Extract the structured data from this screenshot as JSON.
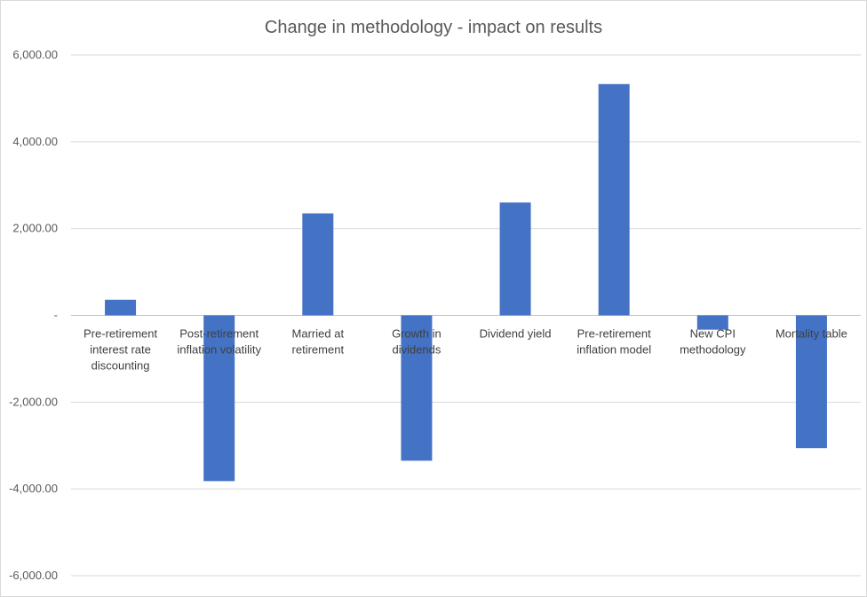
{
  "chart_data": {
    "type": "bar",
    "title": "Change in methodology - impact on results",
    "xlabel": "",
    "ylabel": "",
    "ylim": [
      -6000,
      6000
    ],
    "y_ticks": [
      6000,
      4000,
      2000,
      0,
      -2000,
      -4000,
      -6000
    ],
    "y_tick_labels": [
      "6,000.00",
      "4,000.00",
      "2,000.00",
      "-",
      "-2,000.00",
      "-4,000.00",
      "-6,000.00"
    ],
    "grid": true,
    "legend": "none",
    "categories": [
      "Pre-retirement interest rate discounting",
      "Post-retirement inflation volatility",
      "Married at retirement",
      "Growth in dividends",
      "Dividend yield",
      "Pre-retirement inflation model",
      "New CPI methodology",
      "Mortality table"
    ],
    "category_lines": [
      [
        "Pre-retirement",
        "interest rate",
        "discounting"
      ],
      [
        "Post-retirement",
        "inflation volatility"
      ],
      [
        "Married at",
        "retirement"
      ],
      [
        "Growth in",
        "dividends"
      ],
      [
        "Dividend yield"
      ],
      [
        "Pre-retirement",
        "inflation model"
      ],
      [
        "New CPI",
        "methodology"
      ],
      [
        "Mortality table"
      ]
    ],
    "values": [
      360,
      -3820,
      2350,
      -3350,
      2600,
      5330,
      -330,
      -3060
    ],
    "bar_color": "#4472c4"
  }
}
